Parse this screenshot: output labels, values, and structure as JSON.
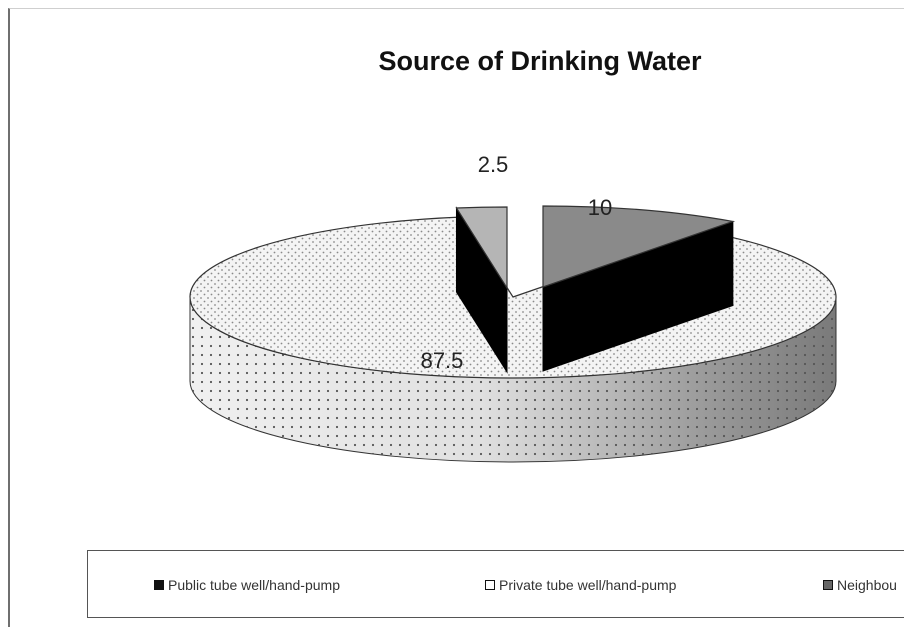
{
  "chart_data": {
    "type": "pie",
    "title": "Source of Drinking Water",
    "categories": [
      "Public tube well/hand-pump",
      "Private tube well/hand-pump",
      "Neighbou"
    ],
    "values": [
      10,
      87.5,
      2.5
    ],
    "labels": [
      "10",
      "87.5",
      "2.5"
    ],
    "colors": [
      "#8a8a8a",
      "#f3f3f3",
      "#b5b5b5"
    ],
    "exploded": [
      true,
      false,
      true
    ],
    "legend_position": "bottom",
    "style": "3d-exploded"
  }
}
